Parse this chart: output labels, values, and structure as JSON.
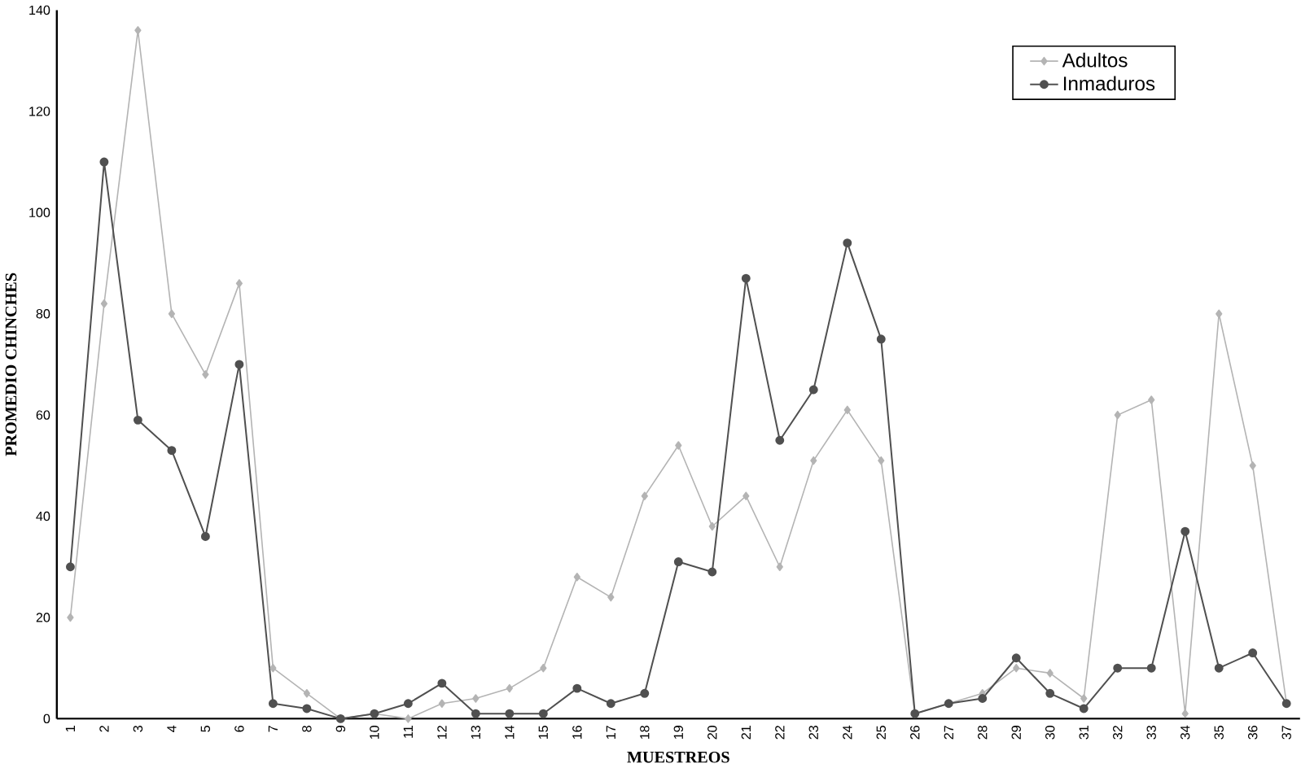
{
  "chart_data": {
    "type": "line",
    "xlabel": "MUESTREOS",
    "ylabel": "PROMEDIO CHINCHES",
    "categories": [
      "1",
      "2",
      "3",
      "4",
      "5",
      "6",
      "7",
      "8",
      "9",
      "10",
      "11",
      "12",
      "13",
      "14",
      "15",
      "16",
      "17",
      "18",
      "19",
      "20",
      "21",
      "22",
      "23",
      "24",
      "25",
      "26",
      "27",
      "28",
      "29",
      "30",
      "31",
      "32",
      "33",
      "34",
      "35",
      "36",
      "37"
    ],
    "series": [
      {
        "name": "Adultos",
        "color": "#b4b4b4",
        "marker": "diamond",
        "line_style": "solid",
        "values": [
          20,
          82,
          136,
          80,
          68,
          86,
          10,
          5,
          0,
          1,
          0,
          3,
          4,
          6,
          10,
          28,
          24,
          44,
          54,
          38,
          44,
          30,
          51,
          61,
          51,
          1,
          3,
          5,
          10,
          9,
          4,
          60,
          63,
          1,
          80,
          50,
          3
        ]
      },
      {
        "name": "Inmaduros",
        "color": "#505050",
        "marker": "circle",
        "line_style": "solid",
        "values": [
          30,
          110,
          59,
          53,
          36,
          70,
          3,
          2,
          0,
          1,
          3,
          7,
          1,
          1,
          1,
          6,
          3,
          5,
          31,
          29,
          87,
          55,
          65,
          94,
          75,
          1,
          3,
          4,
          12,
          5,
          2,
          10,
          10,
          37,
          10,
          13,
          3
        ]
      }
    ],
    "ylim": [
      0,
      140
    ],
    "yticks": [
      0,
      20,
      40,
      60,
      80,
      100,
      120,
      140
    ],
    "grid": false,
    "legend": "top right"
  }
}
